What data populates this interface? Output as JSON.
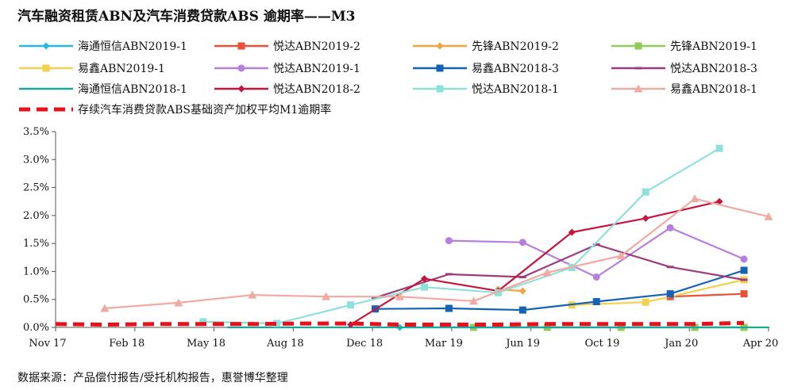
{
  "chart_data": {
    "type": "line",
    "title": "汽车融资租赁ABN及汽车消费贷款ABS 逾期率——M3",
    "source": "数据来源：产品偿付报告/受托机构报告，惠誉博华整理",
    "x_ticks": [
      "Nov 17",
      "Feb 18",
      "May 18",
      "Aug 18",
      "Dec 18",
      "Mar 19",
      "Jun 19",
      "Oct 19",
      "Jan 20",
      "Apr 20"
    ],
    "y_ticks": [
      "0.0%",
      "0.5%",
      "1.0%",
      "1.5%",
      "2.0%",
      "2.5%",
      "3.0%",
      "3.5%"
    ],
    "x_range": [
      "2017-11",
      "2020-04"
    ],
    "ylim": [
      0,
      3.5
    ],
    "y_unit": "%",
    "grid": false,
    "legend_position": "top",
    "series": [
      {
        "name": "海通恒信ABN2019-1",
        "color": "#29b6e6",
        "marker": "diamond",
        "dashed": false,
        "points": [
          [
            "2019-01",
            0.0
          ],
          [
            "2019-04",
            0.0
          ],
          [
            "2019-07",
            0.0
          ],
          [
            "2019-10",
            0.0
          ],
          [
            "2020-01",
            0.0
          ],
          [
            "2020-03",
            0.0
          ]
        ]
      },
      {
        "name": "悦达ABN2019-2",
        "color": "#e8503a",
        "marker": "square",
        "dashed": false,
        "points": [
          [
            "2019-12",
            0.55
          ],
          [
            "2020-03",
            0.6
          ]
        ]
      },
      {
        "name": "先锋ABN2019-2",
        "color": "#f1a340",
        "marker": "diamond",
        "dashed": false,
        "points": [
          [
            "2019-05",
            0.68
          ],
          [
            "2019-06",
            0.65
          ]
        ]
      },
      {
        "name": "先锋ABN2019-1",
        "color": "#8fcc5a",
        "marker": "square",
        "dashed": false,
        "points": [
          [
            "2019-04",
            0.0
          ],
          [
            "2019-07",
            0.0
          ],
          [
            "2019-10",
            0.0
          ],
          [
            "2020-01",
            0.0
          ],
          [
            "2020-03",
            0.0
          ]
        ]
      },
      {
        "name": "易鑫ABN2019-1",
        "color": "#f3d04d",
        "marker": "square",
        "dashed": false,
        "points": [
          [
            "2019-08",
            0.4
          ],
          [
            "2019-11",
            0.45
          ],
          [
            "2020-03",
            0.85
          ]
        ]
      },
      {
        "name": "悦达ABN2019-1",
        "color": "#b57fe0",
        "marker": "circle",
        "dashed": false,
        "points": [
          [
            "2019-03",
            1.55
          ],
          [
            "2019-06",
            1.52
          ],
          [
            "2019-09",
            0.9
          ],
          [
            "2019-12",
            1.78
          ],
          [
            "2020-03",
            1.22
          ]
        ]
      },
      {
        "name": "易鑫ABN2018-3",
        "color": "#1563b5",
        "marker": "square",
        "dashed": false,
        "points": [
          [
            "2018-12",
            0.33
          ],
          [
            "2019-03",
            0.34
          ],
          [
            "2019-06",
            0.31
          ],
          [
            "2019-09",
            0.46
          ],
          [
            "2019-12",
            0.6
          ],
          [
            "2020-03",
            1.02
          ]
        ]
      },
      {
        "name": "悦达ABN2018-3",
        "color": "#9a3d7e",
        "marker": "dash",
        "dashed": false,
        "points": [
          [
            "2018-12",
            0.53
          ],
          [
            "2019-03",
            0.95
          ],
          [
            "2019-06",
            0.9
          ],
          [
            "2019-09",
            1.48
          ],
          [
            "2019-12",
            1.08
          ],
          [
            "2020-03",
            0.85
          ]
        ]
      },
      {
        "name": "海通恒信ABN2018-1",
        "color": "#1aa89a",
        "marker": "none",
        "dashed": false,
        "points": [
          [
            "2018-06",
            0.0
          ],
          [
            "2018-09",
            0.0
          ],
          [
            "2018-12",
            0.0
          ],
          [
            "2019-03",
            0.0
          ],
          [
            "2019-06",
            0.0
          ],
          [
            "2019-09",
            0.0
          ],
          [
            "2019-12",
            0.0
          ],
          [
            "2020-04",
            0.0
          ]
        ]
      },
      {
        "name": "悦达ABN2018-2",
        "color": "#c4163e",
        "marker": "diamond",
        "dashed": false,
        "points": [
          [
            "2018-11",
            0.05
          ],
          [
            "2019-02",
            0.87
          ],
          [
            "2019-05",
            0.65
          ],
          [
            "2019-08",
            1.7
          ],
          [
            "2019-11",
            1.95
          ],
          [
            "2020-02",
            2.25
          ]
        ]
      },
      {
        "name": "悦达ABN2018-1",
        "color": "#8fe0da",
        "marker": "square",
        "dashed": false,
        "points": [
          [
            "2018-05",
            0.1
          ],
          [
            "2018-08",
            0.07
          ],
          [
            "2018-11",
            0.4
          ],
          [
            "2019-02",
            0.72
          ],
          [
            "2019-05",
            0.62
          ],
          [
            "2019-08",
            1.07
          ],
          [
            "2019-11",
            2.42
          ],
          [
            "2020-02",
            3.2
          ]
        ]
      },
      {
        "name": "易鑫ABN2018-1",
        "color": "#f0aaa2",
        "marker": "triangle",
        "dashed": false,
        "points": [
          [
            "2018-01",
            0.34
          ],
          [
            "2018-04",
            0.44
          ],
          [
            "2018-07",
            0.58
          ],
          [
            "2018-10",
            0.55
          ],
          [
            "2019-01",
            0.55
          ],
          [
            "2019-04",
            0.47
          ],
          [
            "2019-07",
            0.98
          ],
          [
            "2019-10",
            1.28
          ],
          [
            "2020-01",
            2.3
          ],
          [
            "2020-04",
            1.98
          ]
        ]
      },
      {
        "name": "存续汽车消费贷款ABS基础资产加权平均M1逾期率",
        "color": "#e8101a",
        "marker": "none",
        "dashed": true,
        "points": [
          [
            "2017-11",
            0.06
          ],
          [
            "2018-01",
            0.05
          ],
          [
            "2018-03",
            0.06
          ],
          [
            "2018-05",
            0.06
          ],
          [
            "2018-07",
            0.06
          ],
          [
            "2018-09",
            0.07
          ],
          [
            "2018-11",
            0.07
          ],
          [
            "2019-01",
            0.05
          ],
          [
            "2019-03",
            0.05
          ],
          [
            "2019-05",
            0.05
          ],
          [
            "2019-07",
            0.06
          ],
          [
            "2019-09",
            0.06
          ],
          [
            "2019-11",
            0.06
          ],
          [
            "2020-01",
            0.06
          ],
          [
            "2020-03",
            0.08
          ]
        ]
      }
    ]
  }
}
